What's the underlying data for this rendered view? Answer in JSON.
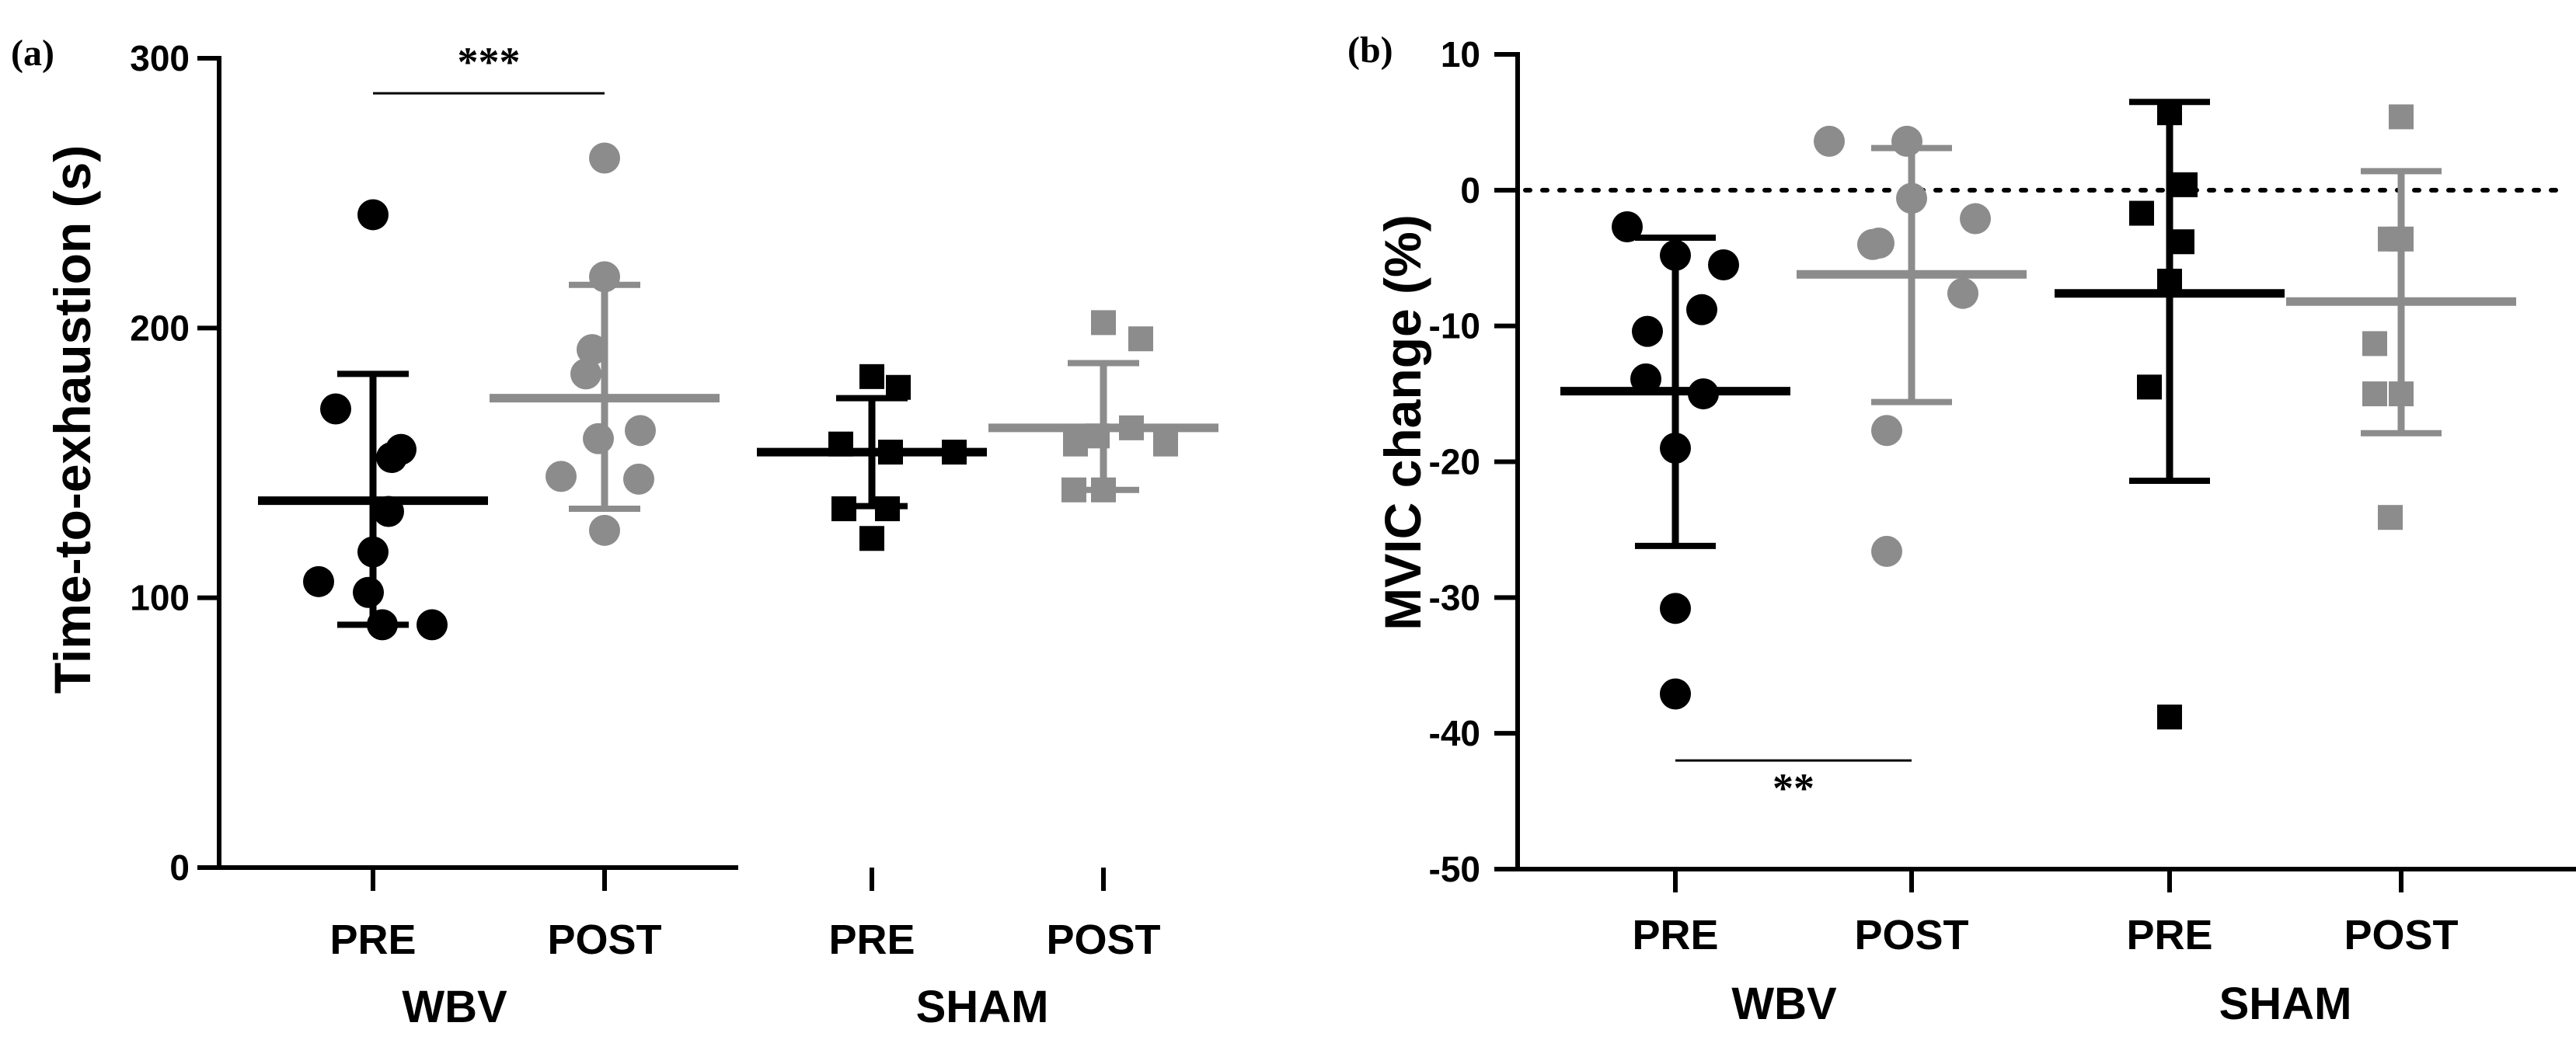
{
  "chart_data": [
    {
      "type": "scatter",
      "panel_label": "(a)",
      "ylabel": "Time-to-exhaustion (s)",
      "ylim": [
        0,
        300
      ],
      "yticks": [
        0,
        100,
        200,
        300
      ],
      "ytick_labels": [
        "0",
        "100",
        "200",
        "300"
      ],
      "groups": [
        {
          "label": "WBV",
          "categories": [
            "PRE",
            "POST"
          ]
        },
        {
          "label": "SHAM",
          "categories": [
            "PRE",
            "POST"
          ]
        }
      ],
      "series": [
        {
          "name": "WBV PRE",
          "category": "PRE",
          "group": "WBV",
          "marker": "circle",
          "color": "#000000",
          "values": [
            242,
            170,
            155,
            152,
            132,
            117,
            106,
            102,
            90,
            90
          ],
          "mean": 136,
          "sd_low": 90,
          "sd_high": 183
        },
        {
          "name": "WBV POST",
          "category": "POST",
          "group": "WBV",
          "marker": "circle",
          "color": "#8c8c8c",
          "values": [
            263,
            219,
            192,
            183,
            162,
            159,
            145,
            144,
            125
          ],
          "mean": 174,
          "sd_low": 133,
          "sd_high": 216
        },
        {
          "name": "SHAM PRE",
          "category": "PRE",
          "group": "SHAM",
          "marker": "square",
          "color": "#000000",
          "values": [
            182,
            178,
            157,
            154,
            154,
            133,
            133,
            122
          ],
          "mean": 154,
          "sd_low": 134,
          "sd_high": 174
        },
        {
          "name": "SHAM POST",
          "category": "POST",
          "group": "SHAM",
          "marker": "square",
          "color": "#8c8c8c",
          "values": [
            202,
            196,
            163,
            160,
            157,
            157,
            140,
            140
          ],
          "mean": 163,
          "sd_low": 140,
          "sd_high": 187
        }
      ],
      "annotations": [
        {
          "text": "***",
          "from": "WBV PRE",
          "to": "WBV POST",
          "y": 287,
          "position": "above"
        }
      ]
    },
    {
      "type": "scatter",
      "panel_label": "(b)",
      "ylabel": "MVIC change (%)",
      "ylim": [
        -50,
        10
      ],
      "yticks": [
        10,
        0,
        -10,
        -20,
        -30,
        -40,
        -50
      ],
      "ytick_labels": [
        "10",
        "0",
        "-10",
        "-20",
        "-30",
        "-40",
        "-50"
      ],
      "reference_line": {
        "y": 0,
        "style": "dotted"
      },
      "groups": [
        {
          "label": "WBV",
          "categories": [
            "PRE",
            "POST"
          ]
        },
        {
          "label": "SHAM",
          "categories": [
            "PRE",
            "POST"
          ]
        }
      ],
      "series": [
        {
          "name": "WBV PRE",
          "category": "PRE",
          "group": "WBV",
          "marker": "circle",
          "color": "#000000",
          "values": [
            -2.7,
            -4.8,
            -5.5,
            -8.8,
            -10.4,
            -13.9,
            -15.0,
            -19.0,
            -30.8,
            -37.1
          ],
          "mean": -14.8,
          "sd_low": -26.2,
          "sd_high": -3.5
        },
        {
          "name": "WBV POST",
          "category": "POST",
          "group": "WBV",
          "marker": "circle",
          "color": "#8c8c8c",
          "values": [
            3.6,
            3.6,
            -0.6,
            -2.1,
            -3.9,
            -4.0,
            -7.6,
            -17.7,
            -26.6
          ],
          "mean": -6.2,
          "sd_low": -15.6,
          "sd_high": 3.1
        },
        {
          "name": "SHAM PRE",
          "category": "PRE",
          "group": "SHAM",
          "marker": "square",
          "color": "#000000",
          "values": [
            5.7,
            0.4,
            -1.7,
            -3.8,
            -6.7,
            -14.5,
            -38.8
          ],
          "mean": -7.6,
          "sd_low": -21.4,
          "sd_high": 6.5
        },
        {
          "name": "SHAM POST",
          "category": "POST",
          "group": "SHAM",
          "marker": "square",
          "color": "#8c8c8c",
          "values": [
            5.4,
            -3.6,
            -3.6,
            -11.3,
            -15.0,
            -15.0,
            -24.1
          ],
          "mean": -8.2,
          "sd_low": -17.9,
          "sd_high": 1.4
        }
      ],
      "annotations": [
        {
          "text": "**",
          "from": "WBV PRE",
          "to": "WBV POST",
          "y": -42,
          "position": "below"
        }
      ]
    }
  ]
}
